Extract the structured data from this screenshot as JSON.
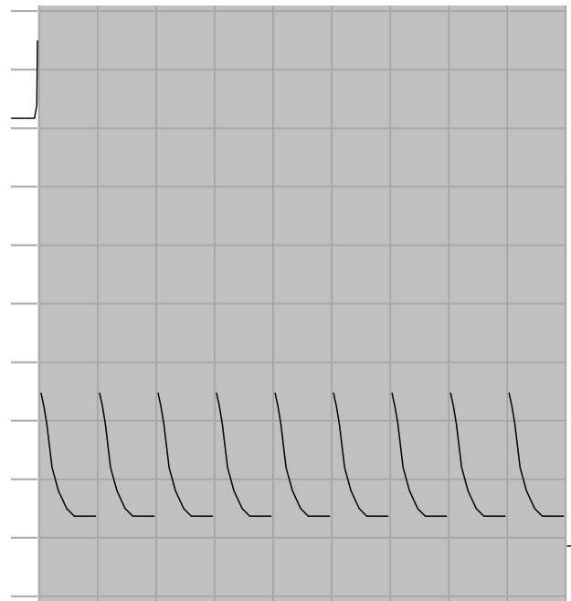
{
  "chart_data": {
    "type": "line",
    "xlim": [
      -0.67,
      9.09
    ],
    "ylim": [
      -0.08,
      10.19
    ],
    "xticks": [
      0,
      1,
      2,
      3,
      4,
      5,
      6,
      7,
      8,
      9
    ],
    "yticks": [
      0,
      1,
      2,
      3,
      4,
      5,
      6,
      7,
      8,
      9,
      10
    ],
    "grid": true,
    "series": [
      {
        "color": "#000000",
        "x": [
          -0.48,
          -0.08,
          -0.04,
          -0.03,
          null,
          0.03,
          0.08,
          0.13,
          0.22,
          0.33,
          0.47,
          0.6,
          0.97,
          null,
          1.03,
          1.08,
          1.13,
          1.22,
          1.33,
          1.47,
          1.6,
          1.97,
          null,
          2.03,
          2.08,
          2.13,
          2.22,
          2.33,
          2.47,
          2.6,
          2.97,
          null,
          3.03,
          3.08,
          3.13,
          3.22,
          3.33,
          3.47,
          3.6,
          3.97,
          null,
          4.03,
          4.08,
          4.13,
          4.22,
          4.33,
          4.47,
          4.6,
          4.97,
          null,
          5.03,
          5.08,
          5.13,
          5.22,
          5.33,
          5.47,
          5.6,
          5.97,
          null,
          6.03,
          6.08,
          6.13,
          6.22,
          6.33,
          6.47,
          6.6,
          6.97,
          null,
          7.03,
          7.08,
          7.13,
          7.22,
          7.33,
          7.47,
          7.6,
          7.97,
          null,
          8.03,
          8.08,
          8.13,
          8.22,
          8.33,
          8.47,
          8.6,
          8.97,
          null,
          9.02,
          9.09
        ],
        "values": [
          8.17,
          8.17,
          8.4,
          9.5,
          null,
          3.48,
          3.25,
          2.95,
          2.2,
          1.8,
          1.5,
          1.37,
          1.37,
          null,
          3.48,
          3.25,
          2.95,
          2.2,
          1.8,
          1.5,
          1.37,
          1.37,
          null,
          3.48,
          3.25,
          2.95,
          2.2,
          1.8,
          1.5,
          1.37,
          1.37,
          null,
          3.48,
          3.25,
          2.95,
          2.2,
          1.8,
          1.5,
          1.37,
          1.37,
          null,
          3.48,
          3.25,
          2.95,
          2.2,
          1.8,
          1.5,
          1.37,
          1.37,
          null,
          3.48,
          3.25,
          2.95,
          2.2,
          1.8,
          1.5,
          1.37,
          1.37,
          null,
          3.48,
          3.25,
          2.95,
          2.2,
          1.8,
          1.5,
          1.37,
          1.37,
          null,
          3.48,
          3.25,
          2.95,
          2.2,
          1.8,
          1.5,
          1.37,
          1.37,
          null,
          3.48,
          3.25,
          2.95,
          2.2,
          1.8,
          1.5,
          1.37,
          1.37,
          null,
          0.86,
          0.86
        ]
      }
    ]
  }
}
